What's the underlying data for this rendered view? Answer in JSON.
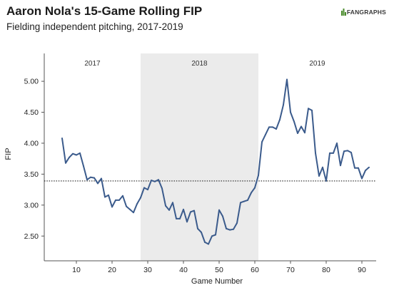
{
  "header": {
    "title": "Aaron Nola's 15-Game Rolling FIP",
    "subtitle": "Fielding independent pitching, 2017-2019",
    "logo_text": "FANGRAPHS"
  },
  "chart_data": {
    "type": "line",
    "title": "Aaron Nola's 15-Game Rolling FIP",
    "subtitle": "Fielding independent pitching, 2017-2019",
    "xlabel": "Game Number",
    "ylabel": "FIP",
    "xlim": [
      1,
      94
    ],
    "ylim": [
      2.1,
      5.45
    ],
    "xticks": [
      10,
      20,
      30,
      40,
      50,
      60,
      70,
      80,
      90
    ],
    "yticks": [
      2.5,
      3.0,
      3.5,
      4.0,
      4.5,
      5.0
    ],
    "ytick_labels": [
      "2.50",
      "3.00",
      "3.50",
      "4.00",
      "4.50",
      "5.00"
    ],
    "grid": false,
    "line_color": "#3b5b8c",
    "shade_color": "#ebebeb",
    "seasons": [
      {
        "label": "2017",
        "start": 1,
        "end": 28,
        "shaded": false
      },
      {
        "label": "2018",
        "start": 28,
        "end": 61,
        "shaded": true
      },
      {
        "label": "2019",
        "start": 61,
        "end": 94,
        "shaded": false
      }
    ],
    "reference_line": {
      "y": 3.39,
      "style": "dotted"
    },
    "x": [
      6,
      7,
      8,
      9,
      10,
      11,
      12,
      13,
      14,
      15,
      16,
      17,
      18,
      19,
      20,
      21,
      22,
      23,
      24,
      25,
      26,
      27,
      28,
      29,
      30,
      31,
      32,
      33,
      34,
      35,
      36,
      37,
      38,
      39,
      40,
      41,
      42,
      43,
      44,
      45,
      46,
      47,
      48,
      49,
      50,
      51,
      52,
      53,
      54,
      55,
      56,
      57,
      58,
      59,
      60,
      61,
      62,
      63,
      64,
      65,
      66,
      67,
      68,
      69,
      70,
      71,
      72,
      73,
      74,
      75,
      76,
      77,
      78,
      79,
      80,
      81,
      82,
      83,
      84,
      85,
      86,
      87,
      88,
      89,
      90,
      91,
      92
    ],
    "values": [
      4.08,
      3.68,
      3.77,
      3.83,
      3.81,
      3.84,
      3.63,
      3.41,
      3.45,
      3.44,
      3.35,
      3.43,
      3.13,
      3.16,
      2.97,
      3.08,
      3.08,
      3.15,
      2.98,
      2.93,
      2.88,
      3.02,
      3.12,
      3.28,
      3.25,
      3.4,
      3.38,
      3.41,
      3.27,
      2.99,
      2.92,
      3.04,
      2.78,
      2.78,
      2.93,
      2.73,
      2.89,
      2.91,
      2.62,
      2.56,
      2.4,
      2.37,
      2.5,
      2.52,
      2.92,
      2.82,
      2.62,
      2.6,
      2.61,
      2.71,
      3.04,
      3.06,
      3.08,
      3.2,
      3.28,
      3.48,
      4.02,
      4.14,
      4.26,
      4.26,
      4.23,
      4.38,
      4.62,
      5.03,
      4.5,
      4.35,
      4.16,
      4.27,
      4.17,
      4.56,
      4.53,
      3.84,
      3.47,
      3.61,
      3.39,
      3.84,
      3.84,
      4.0,
      3.64,
      3.87,
      3.88,
      3.85,
      3.6,
      3.6,
      3.43,
      3.56,
      3.61
    ]
  }
}
